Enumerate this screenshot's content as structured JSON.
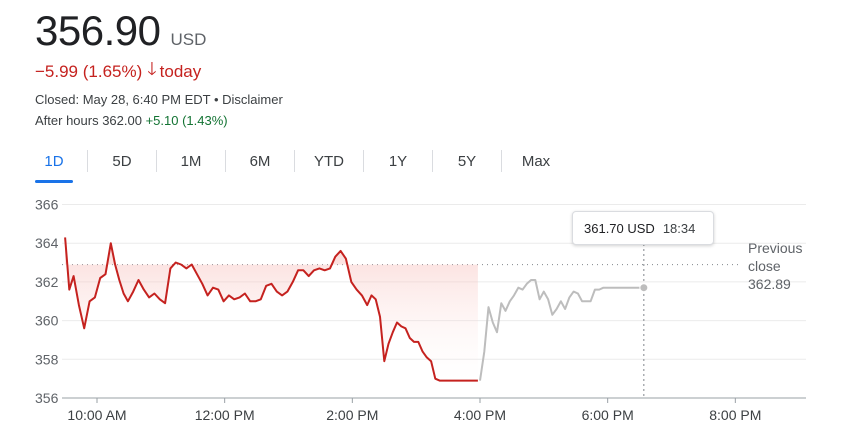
{
  "quote": {
    "price": "356.90",
    "currency": "USD",
    "change": "−5.99 (1.65%)",
    "change_period": "today",
    "closed_text": "Closed: May 28, 6:40 PM EDT • Disclaimer",
    "after_hours_label": "After hours 362.00",
    "after_hours_change": "+5.10 (1.43%)"
  },
  "tabs": [
    {
      "label": "1D",
      "active": true
    },
    {
      "label": "5D"
    },
    {
      "label": "1M"
    },
    {
      "label": "6M"
    },
    {
      "label": "YTD"
    },
    {
      "label": "1Y"
    },
    {
      "label": "5Y"
    },
    {
      "label": "Max"
    }
  ],
  "tooltip": {
    "value": "361.70 USD",
    "time": "18:34"
  },
  "previous_close": {
    "line1": "Previous",
    "line2": "close",
    "value": "362.89"
  },
  "colors": {
    "down": "#c5221f",
    "up": "#137333",
    "accent": "#1a73e8",
    "after_hours_line": "#bdbdbd",
    "fill": "#fce8e6"
  },
  "chart_data": {
    "type": "line",
    "x_unit": "time of day",
    "xlim": [
      "9:30 AM",
      "9:00 PM"
    ],
    "ylim": [
      356,
      366
    ],
    "yticks": [
      356,
      358,
      360,
      362,
      364,
      366
    ],
    "xticks": [
      "10:00 AM",
      "12:00 PM",
      "2:00 PM",
      "4:00 PM",
      "6:00 PM",
      "8:00 PM"
    ],
    "xtick_times": [
      "10:00",
      "12:00",
      "14:00",
      "16:00",
      "18:00",
      "20:00"
    ],
    "previous_close": 362.89,
    "series": [
      {
        "session": "regular",
        "x": [
          "9:30",
          "9:34",
          "9:38",
          "9:43",
          "9:48",
          "9:53",
          "9:58",
          "10:03",
          "10:08",
          "10:13",
          "10:17",
          "10:21",
          "10:25",
          "10:29",
          "10:34",
          "10:39",
          "10:44",
          "10:49",
          "10:54",
          "10:59",
          "11:04",
          "11:09",
          "11:14",
          "11:19",
          "11:24",
          "11:29",
          "11:34",
          "11:39",
          "11:44",
          "11:49",
          "11:54",
          "11:59",
          "12:04",
          "12:09",
          "12:14",
          "12:19",
          "12:24",
          "12:29",
          "12:34",
          "12:39",
          "12:44",
          "12:49",
          "12:54",
          "12:59",
          "13:04",
          "13:09",
          "13:14",
          "13:19",
          "13:24",
          "13:29",
          "13:34",
          "13:39",
          "13:44",
          "13:49",
          "13:54",
          "13:59",
          "14:04",
          "14:09",
          "14:14",
          "14:18",
          "14:22",
          "14:26",
          "14:30",
          "14:34",
          "14:38",
          "14:42",
          "14:46",
          "14:50",
          "14:54",
          "14:58",
          "15:02",
          "15:06",
          "15:10",
          "15:14",
          "15:18",
          "15:22",
          "15:26",
          "15:30",
          "15:34",
          "15:38",
          "15:42",
          "15:46",
          "15:50",
          "15:54",
          "15:58"
        ],
        "y": [
          364.3,
          361.6,
          362.3,
          360.8,
          359.6,
          361.0,
          361.2,
          362.2,
          362.4,
          364.0,
          362.9,
          362.1,
          361.4,
          361.0,
          361.5,
          362.1,
          361.6,
          361.2,
          361.4,
          361.1,
          360.9,
          362.7,
          363.0,
          362.9,
          362.7,
          362.9,
          362.4,
          361.9,
          361.3,
          361.7,
          361.6,
          361.0,
          361.3,
          361.1,
          361.2,
          361.4,
          361.0,
          361.0,
          361.1,
          361.8,
          361.9,
          361.5,
          361.3,
          361.5,
          362.0,
          362.6,
          362.6,
          362.3,
          362.6,
          362.7,
          362.6,
          362.7,
          363.3,
          363.6,
          363.2,
          362.0,
          361.6,
          361.3,
          360.8,
          361.3,
          361.1,
          360.2,
          357.9,
          358.8,
          359.4,
          359.9,
          359.7,
          359.6,
          359.1,
          358.9,
          358.9,
          358.4,
          358.1,
          357.9,
          357.0,
          356.9,
          356.9,
          356.9,
          356.9,
          356.9,
          356.9,
          356.9,
          356.9,
          356.9,
          356.9
        ]
      },
      {
        "session": "after hours",
        "x": [
          "16:00",
          "16:04",
          "16:08",
          "16:12",
          "16:16",
          "16:20",
          "16:24",
          "16:28",
          "16:32",
          "16:36",
          "16:40",
          "16:44",
          "16:48",
          "16:52",
          "16:56",
          "17:00",
          "17:04",
          "17:08",
          "17:12",
          "17:16",
          "17:20",
          "17:24",
          "17:28",
          "17:32",
          "17:36",
          "17:40",
          "17:44",
          "17:48",
          "17:52",
          "17:56",
          "18:00",
          "18:04",
          "18:08",
          "18:12",
          "18:16",
          "18:20",
          "18:24",
          "18:28",
          "18:34"
        ],
        "y": [
          356.9,
          358.4,
          360.7,
          359.9,
          359.4,
          360.9,
          360.5,
          361.0,
          361.3,
          361.7,
          361.6,
          361.9,
          362.1,
          362.1,
          361.1,
          361.5,
          361.1,
          360.3,
          360.6,
          361.0,
          360.6,
          361.2,
          361.5,
          361.4,
          361.0,
          361.0,
          361.0,
          361.6,
          361.6,
          361.7,
          361.7,
          361.7,
          361.7,
          361.7,
          361.7,
          361.7,
          361.7,
          361.7,
          361.7
        ]
      }
    ],
    "highlight": {
      "x": "18:34",
      "y": 361.7
    }
  }
}
